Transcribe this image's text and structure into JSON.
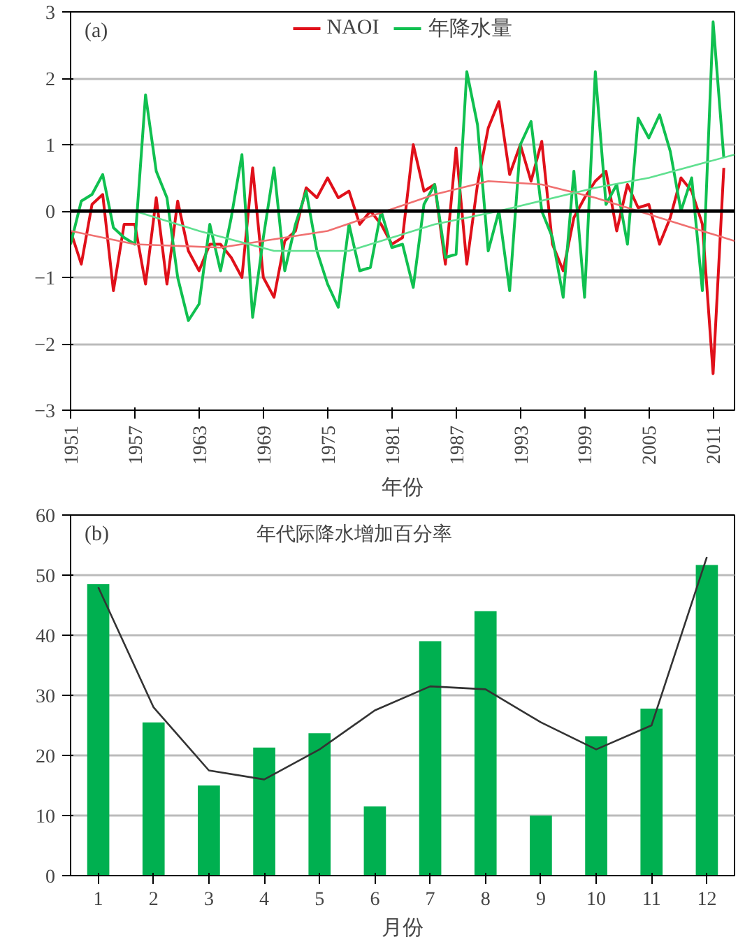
{
  "chart_data": [
    {
      "type": "line",
      "xlabel": "年份",
      "annotations": [
        "(a)"
      ],
      "x": [
        1951,
        1952,
        1953,
        1954,
        1955,
        1956,
        1957,
        1958,
        1959,
        1960,
        1961,
        1962,
        1963,
        1964,
        1965,
        1966,
        1967,
        1968,
        1969,
        1970,
        1971,
        1972,
        1973,
        1974,
        1975,
        1976,
        1977,
        1978,
        1979,
        1980,
        1981,
        1982,
        1983,
        1984,
        1985,
        1986,
        1987,
        1988,
        1989,
        1990,
        1991,
        1992,
        1993,
        1994,
        1995,
        1996,
        1997,
        1998,
        1999,
        2000,
        2001,
        2002,
        2003,
        2004,
        2005,
        2006,
        2007,
        2008,
        2009,
        2010,
        2011,
        2012
      ],
      "series": [
        {
          "name": "NAOI",
          "color": "#e0101a",
          "values": [
            -0.3,
            -0.8,
            0.1,
            0.25,
            -1.2,
            -0.2,
            -0.2,
            -1.1,
            0.2,
            -1.1,
            0.15,
            -0.6,
            -0.9,
            -0.5,
            -0.5,
            -0.7,
            -1.0,
            0.65,
            -1.0,
            -1.3,
            -0.45,
            -0.3,
            0.35,
            0.2,
            0.5,
            0.2,
            0.3,
            -0.2,
            0.0,
            -0.2,
            -0.5,
            -0.4,
            1.0,
            0.3,
            0.4,
            -0.8,
            0.95,
            -0.8,
            0.4,
            1.25,
            1.65,
            0.55,
            1.0,
            0.45,
            1.05,
            -0.5,
            -0.9,
            -0.1,
            0.2,
            0.45,
            0.6,
            -0.3,
            0.4,
            0.05,
            0.1,
            -0.5,
            -0.1,
            0.5,
            0.3,
            -0.2,
            -2.45,
            0.65
          ]
        },
        {
          "name": "年降水量",
          "color": "#10c050",
          "values": [
            -0.5,
            0.15,
            0.25,
            0.55,
            -0.25,
            -0.4,
            -0.5,
            1.75,
            0.6,
            0.2,
            -1.0,
            -1.65,
            -1.4,
            -0.2,
            -0.9,
            -0.1,
            0.85,
            -1.6,
            -0.4,
            0.65,
            -0.9,
            -0.2,
            0.3,
            -0.6,
            -1.1,
            -1.45,
            -0.2,
            -0.9,
            -0.85,
            0.0,
            -0.55,
            -0.5,
            -1.15,
            0.1,
            0.4,
            -0.7,
            -0.65,
            2.1,
            1.3,
            -0.6,
            0.0,
            -1.2,
            1.0,
            1.35,
            0.0,
            -0.4,
            -1.3,
            0.6,
            -1.3,
            2.1,
            0.1,
            0.4,
            -0.5,
            1.4,
            1.1,
            1.45,
            0.9,
            0.0,
            0.5,
            -1.2,
            2.85,
            0.8
          ]
        },
        {
          "type": "line",
          "color": "#f07070",
          "x": [
            1951,
            1957,
            1965,
            1975,
            1985,
            1990,
            1995,
            2000,
            2005,
            2013
          ],
          "values": [
            -0.3,
            -0.5,
            -0.55,
            -0.3,
            0.25,
            0.45,
            0.4,
            0.2,
            -0.05,
            -0.45
          ]
        },
        {
          "type": "line",
          "color": "#60e090",
          "x": [
            1951,
            1957,
            1963,
            1970,
            1977,
            1985,
            1991,
            2000,
            2005,
            2013
          ],
          "values": [
            0.0,
            0.0,
            -0.3,
            -0.6,
            -0.6,
            -0.2,
            0.0,
            0.35,
            0.5,
            0.85
          ]
        }
      ],
      "xlim": [
        1951,
        2013
      ],
      "xticks": [
        1951,
        1957,
        1963,
        1969,
        1975,
        1981,
        1987,
        1993,
        1999,
        2005,
        2011
      ],
      "ylim": [
        -3,
        3
      ],
      "yticks": [
        -3,
        -2,
        -1,
        0,
        1,
        2,
        3
      ],
      "ref_lines": [
        {
          "axis": "y",
          "value": 0,
          "color": "#000000"
        }
      ],
      "grid": "y",
      "legend": "top"
    },
    {
      "type": "bar",
      "title": "年代际降水增加百分率",
      "xlabel": "月份",
      "annotations": [
        "(b)"
      ],
      "categories": [
        "1",
        "2",
        "3",
        "4",
        "5",
        "6",
        "7",
        "8",
        "9",
        "10",
        "11",
        "12"
      ],
      "series": [
        {
          "color": "#00b050",
          "values": [
            48.5,
            25.5,
            15,
            21.3,
            23.7,
            11.5,
            39,
            44,
            10,
            23.2,
            27.8,
            51.7
          ]
        },
        {
          "type": "line",
          "color": "#333333",
          "values": [
            48,
            28,
            17.5,
            16,
            21,
            27.5,
            31.5,
            31,
            25.5,
            21,
            25,
            53
          ]
        }
      ],
      "ylim": [
        0,
        60
      ],
      "yticks": [
        0,
        10,
        20,
        30,
        40,
        50,
        60
      ],
      "grid": "y"
    }
  ]
}
